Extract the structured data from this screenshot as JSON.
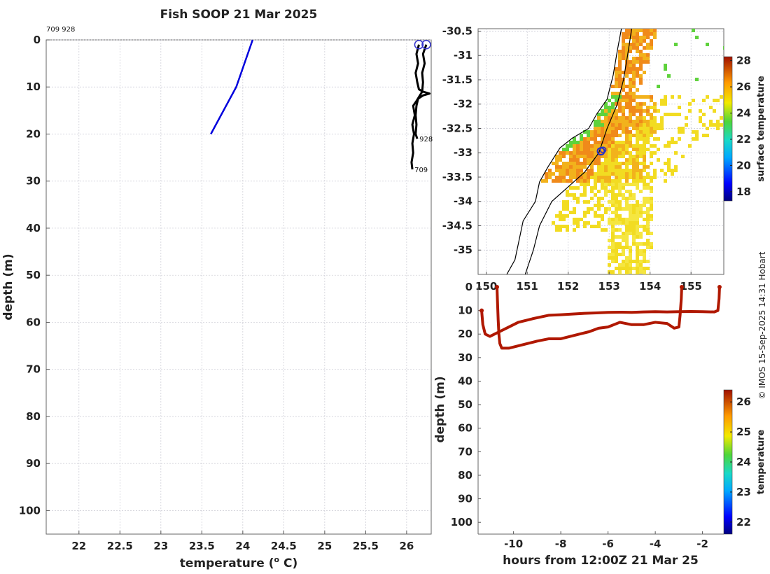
{
  "title": "Fish SOOP 21 Mar 2025",
  "ids_label": "709 928",
  "credit": "© IMOS 15-Sep-2025 14:31 Hobart",
  "chart_data": [
    {
      "type": "line",
      "name": "profile",
      "xlabel": "temperature (o C)",
      "xlabel_base": "temperature (",
      "xlabel_sup": "o",
      "xlabel_end": " C)",
      "ylabel": "depth (m)",
      "xlim": [
        21.6,
        26.3
      ],
      "ylim": [
        0,
        105
      ],
      "xticks": [
        22,
        22.5,
        23,
        23.5,
        24,
        24.5,
        25,
        25.5,
        26
      ],
      "yticks": [
        0,
        10,
        20,
        30,
        40,
        50,
        60,
        70,
        80,
        90,
        100
      ],
      "grid": true,
      "series": [
        {
          "color": "#0000dd",
          "x": [
            24.12,
            23.92,
            23.61
          ],
          "y": [
            0,
            10,
            20
          ]
        }
      ],
      "inset": {
        "color": "#000000",
        "marker_color": "#3333cc",
        "labels": [
          "928",
          "709"
        ],
        "track_928": [
          [
            26.15,
            1
          ],
          [
            26.12,
            3
          ],
          [
            26.14,
            5
          ],
          [
            26.11,
            7
          ],
          [
            26.13,
            9
          ],
          [
            26.15,
            10.5
          ],
          [
            26.2,
            11
          ],
          [
            26.28,
            11.4
          ],
          [
            26.2,
            11.8
          ],
          [
            26.14,
            12.5
          ],
          [
            26.12,
            14
          ],
          [
            26.11,
            16
          ],
          [
            26.12,
            18
          ],
          [
            26.11,
            20
          ],
          [
            26.13,
            21
          ]
        ],
        "track_709": [
          [
            26.24,
            1
          ],
          [
            26.2,
            3
          ],
          [
            26.22,
            5
          ],
          [
            26.19,
            7
          ],
          [
            26.2,
            9
          ],
          [
            26.19,
            11
          ],
          [
            26.12,
            13
          ],
          [
            26.08,
            14
          ],
          [
            26.1,
            16
          ],
          [
            26.07,
            18
          ],
          [
            26.09,
            20
          ],
          [
            26.07,
            22
          ],
          [
            26.08,
            24
          ],
          [
            26.06,
            26
          ],
          [
            26.07,
            27.5
          ]
        ]
      }
    },
    {
      "type": "heatmap",
      "name": "surface temperature map",
      "xlim": [
        149.8,
        155.8
      ],
      "ylim": [
        -35.5,
        -30.45
      ],
      "xticks": [
        150,
        151,
        152,
        153,
        154,
        155
      ],
      "xtick_labels": [
        "150",
        "151",
        "152",
        "153",
        "154",
        "155"
      ],
      "yticks": [
        -30.5,
        -31,
        -31.5,
        -32,
        -32.5,
        -33,
        -33.5,
        -34,
        -34.5,
        -35
      ],
      "colorbar_label": "surface temperature",
      "colorbar_range": [
        17.3,
        28.3
      ],
      "colorbar_ticks": [
        18,
        20,
        22,
        24,
        26,
        28
      ],
      "track_marker": {
        "lon": 152.8,
        "lat": -32.97
      },
      "coastline": [
        [
          153.3,
          -30.45
        ],
        [
          153.2,
          -30.9
        ],
        [
          153.1,
          -31.4
        ],
        [
          152.95,
          -31.9
        ],
        [
          152.7,
          -32.2
        ],
        [
          152.5,
          -32.5
        ],
        [
          152.1,
          -32.7
        ],
        [
          151.8,
          -32.9
        ],
        [
          151.5,
          -33.3
        ],
        [
          151.3,
          -33.6
        ],
        [
          151.2,
          -34.0
        ],
        [
          150.9,
          -34.4
        ],
        [
          150.8,
          -34.8
        ],
        [
          150.7,
          -35.2
        ],
        [
          150.5,
          -35.5
        ]
      ],
      "shelf_edge": [
        [
          153.55,
          -30.45
        ],
        [
          153.45,
          -31.0
        ],
        [
          153.35,
          -31.5
        ],
        [
          153.2,
          -32.0
        ],
        [
          152.95,
          -32.5
        ],
        [
          152.75,
          -33.0
        ],
        [
          152.4,
          -33.4
        ],
        [
          152.0,
          -33.7
        ],
        [
          151.6,
          -34.0
        ],
        [
          151.3,
          -34.5
        ],
        [
          151.15,
          -35.0
        ],
        [
          150.95,
          -35.5
        ]
      ]
    },
    {
      "type": "scatter",
      "name": "depth vs time",
      "xlabel": "hours from 12:00Z 21 Mar 25",
      "ylabel": "depth (m)",
      "xlim": [
        -11.5,
        -1.1
      ],
      "ylim": [
        0,
        105
      ],
      "xticks": [
        -10,
        -8,
        -6,
        -4,
        -2
      ],
      "yticks": [
        0,
        10,
        20,
        30,
        40,
        50,
        60,
        70,
        80,
        90,
        100
      ],
      "colorbar_label": "temperature",
      "colorbar_range": [
        21.6,
        26.4
      ],
      "colorbar_ticks": [
        22,
        23,
        24,
        25,
        26
      ],
      "marker_color": "#b01800",
      "track_shallow": [
        [
          -11.35,
          10
        ],
        [
          -11.3,
          16
        ],
        [
          -11.2,
          20
        ],
        [
          -11.0,
          21
        ],
        [
          -10.6,
          19
        ],
        [
          -10.2,
          17
        ],
        [
          -9.8,
          15
        ],
        [
          -9.2,
          13.5
        ],
        [
          -8.5,
          12
        ],
        [
          -8.0,
          11.8
        ],
        [
          -7.5,
          11.5
        ],
        [
          -7.0,
          11.2
        ],
        [
          -6.5,
          11
        ],
        [
          -6.0,
          10.8
        ],
        [
          -5.5,
          10.7
        ],
        [
          -5.0,
          10.8
        ],
        [
          -4.5,
          10.6
        ],
        [
          -4.0,
          10.5
        ],
        [
          -3.5,
          10.6
        ],
        [
          -3.0,
          10.5
        ],
        [
          -2.5,
          10.4
        ],
        [
          -2.0,
          10.5
        ],
        [
          -1.5,
          10.6
        ],
        [
          -1.35,
          10
        ],
        [
          -1.3,
          5
        ],
        [
          -1.28,
          0
        ]
      ],
      "track_deep": [
        [
          -10.7,
          0
        ],
        [
          -10.68,
          6
        ],
        [
          -10.65,
          14
        ],
        [
          -10.62,
          20
        ],
        [
          -10.58,
          24
        ],
        [
          -10.5,
          26
        ],
        [
          -10.2,
          26
        ],
        [
          -9.8,
          25
        ],
        [
          -9.4,
          24
        ],
        [
          -9.0,
          23
        ],
        [
          -8.5,
          22
        ],
        [
          -8.0,
          22
        ],
        [
          -7.6,
          21
        ],
        [
          -7.2,
          20
        ],
        [
          -6.8,
          19
        ],
        [
          -6.4,
          17.5
        ],
        [
          -6.0,
          17
        ],
        [
          -5.5,
          15
        ],
        [
          -5.0,
          16
        ],
        [
          -4.5,
          16
        ],
        [
          -4.0,
          15
        ],
        [
          -3.5,
          15.5
        ],
        [
          -3.2,
          17.5
        ],
        [
          -3.0,
          17
        ],
        [
          -2.95,
          12
        ],
        [
          -2.9,
          5
        ],
        [
          -2.88,
          0
        ]
      ]
    }
  ]
}
